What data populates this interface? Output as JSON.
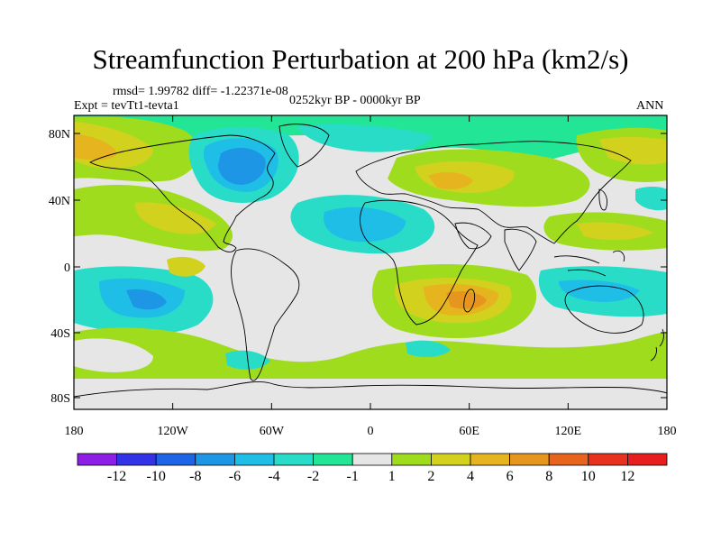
{
  "title": "Streamfunction Perturbation at 200 hPa (km2/s)",
  "stats": "rmsd= 1.99782  diff= -1.22371e-08",
  "experiment": "Expt = tevTt1-tevta1",
  "period": "0252kyr BP - 0000kyr BP",
  "season": "ANN",
  "axes": {
    "lat_ticks": [
      "80N",
      "40N",
      "0",
      "40S",
      "80S"
    ],
    "lon_ticks": [
      "180",
      "120W",
      "60W",
      "0",
      "60E",
      "120E",
      "180"
    ]
  },
  "colorbar": {
    "labels": [
      "-12",
      "-10",
      "-8",
      "-6",
      "-4",
      "-2",
      "-1",
      "1",
      "2",
      "4",
      "6",
      "8",
      "10",
      "12"
    ],
    "colors": [
      "#8c1ee6",
      "#3232e6",
      "#1e64e6",
      "#1e96e6",
      "#1ebee6",
      "#28dcc8",
      "#22e696",
      "#e6e6e6",
      "#a0dc1e",
      "#d2d21e",
      "#e6b41e",
      "#e6961e",
      "#e6641e",
      "#e6321e",
      "#e61e1e"
    ]
  },
  "colors": {
    "land_outline": "#000000",
    "neutral": "#e6e6e6"
  }
}
